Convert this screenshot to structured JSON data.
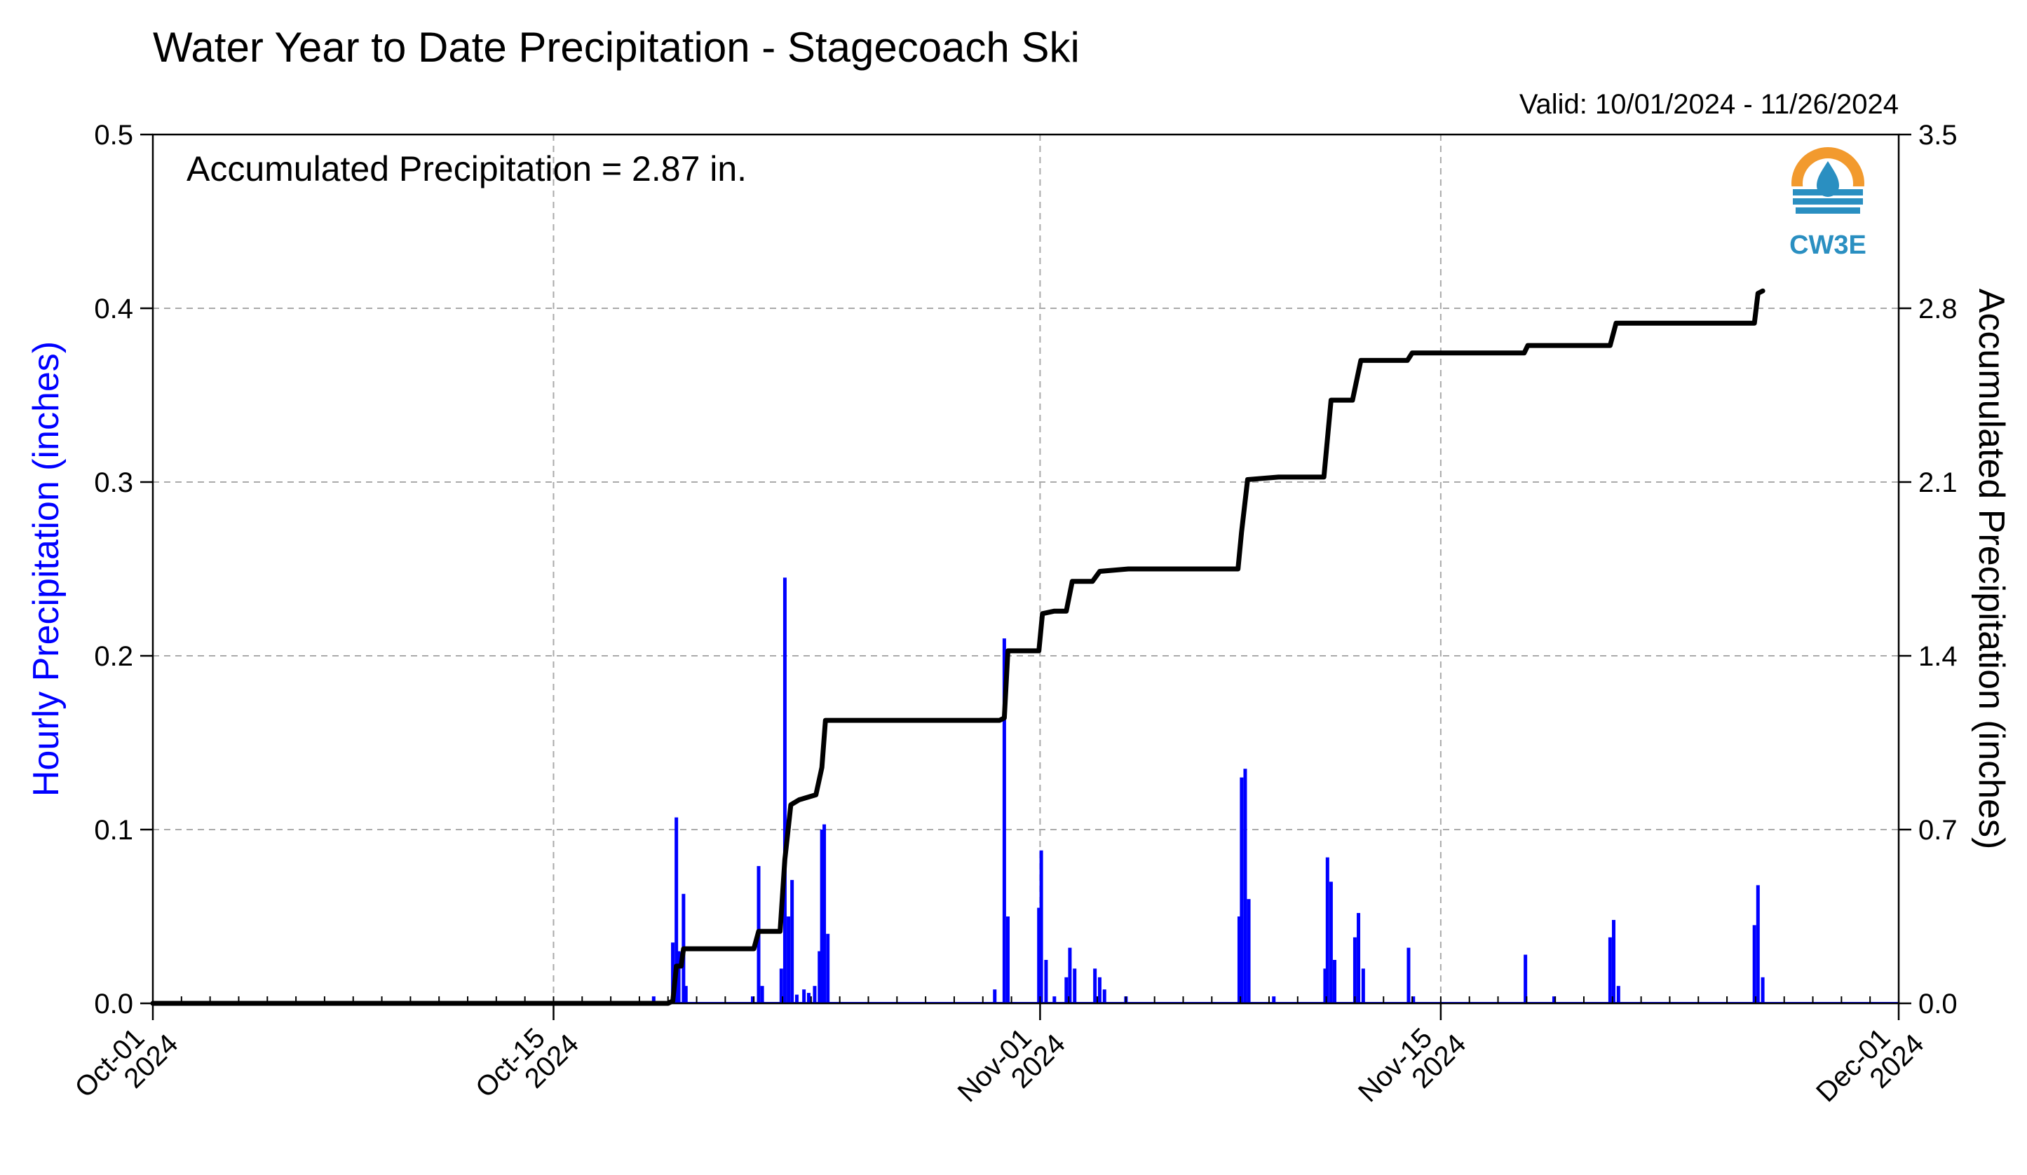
{
  "chart_data": {
    "type": "bar+line",
    "title": "Water Year to Date Precipitation - Stagecoach Ski",
    "subtitle": "Valid: 10/01/2024 - 11/26/2024",
    "annotation": "Accumulated Precipitation = 2.87 in.",
    "logo_text": "CW3E",
    "ylabel_left": "Hourly Precipitation (inches)",
    "ylabel_right": "Accumulated Precipitation (inches)",
    "ylim_left": [
      0,
      0.5
    ],
    "ylim_right": [
      0,
      3.5
    ],
    "xlim": [
      "2024-10-01",
      "2024-12-01"
    ],
    "grid": true,
    "colors": {
      "hourly": "#0000ff",
      "accumulated": "#000000",
      "grid": "#aaaaaa",
      "left_label": "#0000ff"
    },
    "yticks_left": [
      "0.0",
      "0.1",
      "0.2",
      "0.3",
      "0.4",
      "0.5"
    ],
    "yticks_right": [
      "0.0",
      "0.7",
      "1.4",
      "2.1",
      "2.8",
      "3.5"
    ],
    "xticks": [
      {
        "date": "2024-10-01",
        "line1": "Oct-01",
        "line2": "2024"
      },
      {
        "date": "2024-10-15",
        "line1": "Oct-15",
        "line2": "2024"
      },
      {
        "date": "2024-11-01",
        "line1": "Nov-01",
        "line2": "2024"
      },
      {
        "date": "2024-11-15",
        "line1": "Nov-15",
        "line2": "2024"
      },
      {
        "date": "2024-12-01",
        "line1": "Dec-01",
        "line2": "2024"
      }
    ],
    "series": [
      {
        "name": "Hourly Precipitation",
        "type": "bar",
        "points": [
          [
            "2024-10-18T12:00",
            0.004
          ],
          [
            "2024-10-19T04:00",
            0.035
          ],
          [
            "2024-10-19T07:00",
            0.107
          ],
          [
            "2024-10-19T09:00",
            0.03
          ],
          [
            "2024-10-19T13:00",
            0.063
          ],
          [
            "2024-10-19T15:00",
            0.01
          ],
          [
            "2024-10-21T23:00",
            0.004
          ],
          [
            "2024-10-22T04:00",
            0.079
          ],
          [
            "2024-10-22T07:00",
            0.01
          ],
          [
            "2024-10-22T23:00",
            0.02
          ],
          [
            "2024-10-23T02:00",
            0.245
          ],
          [
            "2024-10-23T05:00",
            0.05
          ],
          [
            "2024-10-23T08:00",
            0.071
          ],
          [
            "2024-10-23T12:00",
            0.005
          ],
          [
            "2024-10-23T18:00",
            0.008
          ],
          [
            "2024-10-23T22:00",
            0.006
          ],
          [
            "2024-10-24T03:00",
            0.01
          ],
          [
            "2024-10-24T07:00",
            0.03
          ],
          [
            "2024-10-24T09:00",
            0.1
          ],
          [
            "2024-10-24T11:00",
            0.103
          ],
          [
            "2024-10-24T14:00",
            0.04
          ],
          [
            "2024-10-30T10:00",
            0.008
          ],
          [
            "2024-10-30T18:00",
            0.21
          ],
          [
            "2024-10-30T21:00",
            0.05
          ],
          [
            "2024-10-31T23:00",
            0.055
          ],
          [
            "2024-11-01T01:00",
            0.088
          ],
          [
            "2024-11-01T05:00",
            0.025
          ],
          [
            "2024-11-01T12:00",
            0.004
          ],
          [
            "2024-11-01T22:00",
            0.015
          ],
          [
            "2024-11-02T01:00",
            0.032
          ],
          [
            "2024-11-02T05:00",
            0.02
          ],
          [
            "2024-11-02T22:00",
            0.02
          ],
          [
            "2024-11-03T02:00",
            0.015
          ],
          [
            "2024-11-03T06:00",
            0.008
          ],
          [
            "2024-11-04T00:00",
            0.004
          ],
          [
            "2024-11-07T23:00",
            0.05
          ],
          [
            "2024-11-08T01:00",
            0.13
          ],
          [
            "2024-11-08T04:00",
            0.135
          ],
          [
            "2024-11-08T07:00",
            0.06
          ],
          [
            "2024-11-09T04:00",
            0.004
          ],
          [
            "2024-11-10T23:00",
            0.02
          ],
          [
            "2024-11-11T01:00",
            0.084
          ],
          [
            "2024-11-11T04:00",
            0.07
          ],
          [
            "2024-11-11T07:00",
            0.025
          ],
          [
            "2024-11-12T00:00",
            0.038
          ],
          [
            "2024-11-12T03:00",
            0.052
          ],
          [
            "2024-11-12T07:00",
            0.02
          ],
          [
            "2024-11-13T21:00",
            0.032
          ],
          [
            "2024-11-14T01:00",
            0.004
          ],
          [
            "2024-11-17T23:00",
            0.028
          ],
          [
            "2024-11-18T23:00",
            0.004
          ],
          [
            "2024-11-20T22:00",
            0.038
          ],
          [
            "2024-11-21T01:00",
            0.048
          ],
          [
            "2024-11-21T05:00",
            0.01
          ],
          [
            "2024-11-25T23:00",
            0.045
          ],
          [
            "2024-11-26T02:00",
            0.068
          ],
          [
            "2024-11-26T06:00",
            0.015
          ]
        ]
      },
      {
        "name": "Accumulated Precipitation",
        "type": "line",
        "points": [
          [
            "2024-10-01T00:00",
            0.0
          ],
          [
            "2024-10-19T00:00",
            0.0
          ],
          [
            "2024-10-19T04:00",
            0.01
          ],
          [
            "2024-10-19T07:00",
            0.15
          ],
          [
            "2024-10-19T11:00",
            0.15
          ],
          [
            "2024-10-19T13:00",
            0.22
          ],
          [
            "2024-10-22T00:00",
            0.22
          ],
          [
            "2024-10-22T04:00",
            0.29
          ],
          [
            "2024-10-22T22:00",
            0.29
          ],
          [
            "2024-10-23T02:00",
            0.58
          ],
          [
            "2024-10-23T07:00",
            0.8
          ],
          [
            "2024-10-23T14:00",
            0.82
          ],
          [
            "2024-10-24T04:00",
            0.84
          ],
          [
            "2024-10-24T09:00",
            0.95
          ],
          [
            "2024-10-24T12:00",
            1.14
          ],
          [
            "2024-10-30T14:00",
            1.14
          ],
          [
            "2024-10-30T18:00",
            1.15
          ],
          [
            "2024-10-30T21:00",
            1.42
          ],
          [
            "2024-10-31T23:00",
            1.42
          ],
          [
            "2024-11-01T02:00",
            1.57
          ],
          [
            "2024-11-01T12:00",
            1.58
          ],
          [
            "2024-11-01T22:00",
            1.58
          ],
          [
            "2024-11-02T03:00",
            1.7
          ],
          [
            "2024-11-02T20:00",
            1.7
          ],
          [
            "2024-11-03T02:00",
            1.74
          ],
          [
            "2024-11-04T02:00",
            1.75
          ],
          [
            "2024-11-07T22:00",
            1.75
          ],
          [
            "2024-11-08T01:00",
            1.9
          ],
          [
            "2024-11-08T06:00",
            2.11
          ],
          [
            "2024-11-09T08:00",
            2.12
          ],
          [
            "2024-11-10T22:00",
            2.12
          ],
          [
            "2024-11-11T04:00",
            2.43
          ],
          [
            "2024-11-11T22:00",
            2.43
          ],
          [
            "2024-11-12T05:00",
            2.59
          ],
          [
            "2024-11-13T20:00",
            2.59
          ],
          [
            "2024-11-14T00:00",
            2.62
          ],
          [
            "2024-11-17T22:00",
            2.62
          ],
          [
            "2024-11-18T01:00",
            2.65
          ],
          [
            "2024-11-20T22:00",
            2.65
          ],
          [
            "2024-11-21T03:00",
            2.74
          ],
          [
            "2024-11-25T23:00",
            2.74
          ],
          [
            "2024-11-26T02:00",
            2.86
          ],
          [
            "2024-11-26T06:00",
            2.87
          ]
        ]
      }
    ]
  }
}
